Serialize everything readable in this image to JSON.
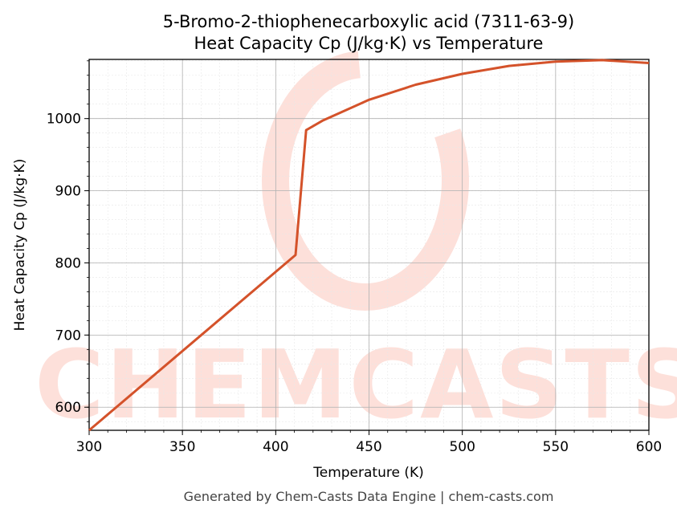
{
  "chart_data": {
    "type": "line",
    "title_line1": "5-Bromo-2-thiophenecarboxylic acid (7311-63-9)",
    "title_line2": "Heat Capacity Cp (J/kg·K) vs Temperature",
    "xlabel": "Temperature (K)",
    "ylabel": "Heat Capacity Cp (J/kg·K)",
    "xlim": [
      300,
      600
    ],
    "ylim": [
      568,
      1082
    ],
    "x_ticks": [
      300,
      350,
      400,
      450,
      500,
      550,
      600
    ],
    "y_ticks": [
      600,
      700,
      800,
      900,
      1000
    ],
    "grid": true,
    "line_color": "#d4522a",
    "series": [
      {
        "x": [
          300,
          410.6,
          416.3,
          425,
          450,
          475,
          500,
          525,
          550,
          575,
          600
        ],
        "values": [
          568,
          811,
          984,
          997,
          1026,
          1047,
          1062,
          1073,
          1079,
          1081,
          1077
        ]
      }
    ]
  },
  "watermark": "CHEMCASTS",
  "footer": "Generated by Chem-Casts Data Engine | chem-casts.com"
}
